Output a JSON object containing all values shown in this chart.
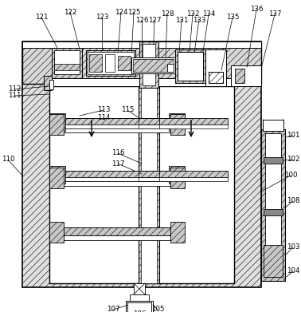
{
  "bg": "#ffffff",
  "lc": "#000000",
  "fig_w": 3.78,
  "fig_h": 3.91,
  "dpi": 100
}
